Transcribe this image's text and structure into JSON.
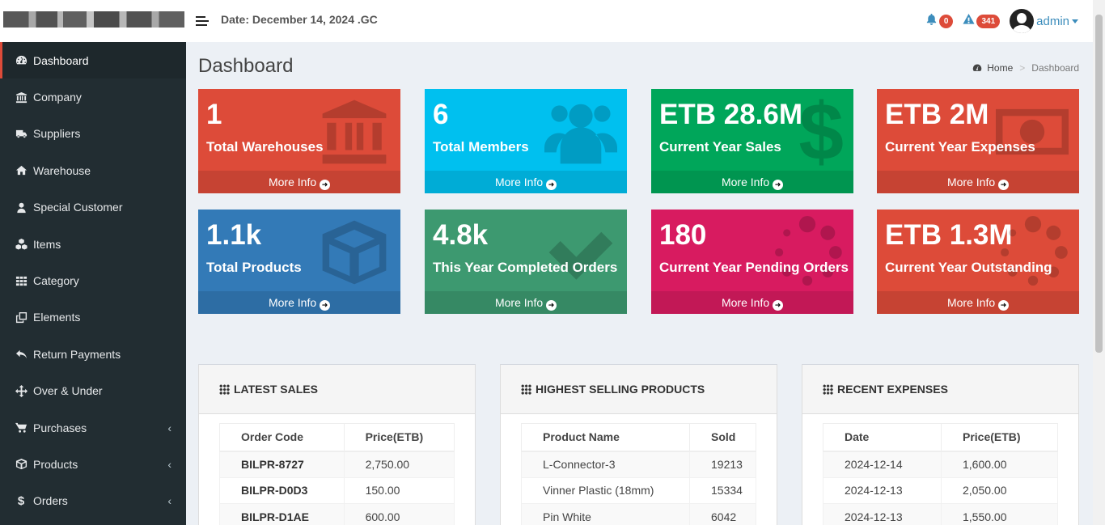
{
  "header": {
    "date": "Date: December 14, 2024 .GC",
    "notifications": [
      {
        "icon": "bell-icon",
        "count": "0"
      },
      {
        "icon": "warning-icon",
        "count": "341"
      }
    ],
    "user": "admin"
  },
  "sidebar": {
    "items": [
      {
        "label": "Dashboard",
        "icon": "dashboard-icon",
        "active": true
      },
      {
        "label": "Company",
        "icon": "bank-icon"
      },
      {
        "label": "Suppliers",
        "icon": "truck-icon"
      },
      {
        "label": "Warehouse",
        "icon": "home-icon"
      },
      {
        "label": "Special Customer",
        "icon": "user-icon"
      },
      {
        "label": "Items",
        "icon": "cubes-icon"
      },
      {
        "label": "Category",
        "icon": "grid-icon"
      },
      {
        "label": "Elements",
        "icon": "clone-icon"
      },
      {
        "label": "Return Payments",
        "icon": "reply-icon"
      },
      {
        "label": "Over & Under",
        "icon": "arrows-icon"
      },
      {
        "label": "Purchases",
        "icon": "cart-icon",
        "expandable": true
      },
      {
        "label": "Products",
        "icon": "cube-icon",
        "expandable": true
      },
      {
        "label": "Orders",
        "icon": "dollar-icon",
        "expandable": true
      }
    ]
  },
  "page": {
    "title": "Dashboard",
    "breadcrumb": {
      "home": "Home",
      "current": "Dashboard"
    }
  },
  "stats": [
    {
      "value": "1",
      "label": "Total Warehouses",
      "more": "More Info",
      "color": "#dd4b39",
      "icon": "bank-icon"
    },
    {
      "value": "6",
      "label": "Total Members",
      "more": "More Info",
      "color": "#00c0ef",
      "icon": "users-icon"
    },
    {
      "value": "ETB 28.6M",
      "label": "Current Year Sales",
      "more": "More Info",
      "color": "#00a65a",
      "icon": "dollar-icon"
    },
    {
      "value": "ETB 2M",
      "label": "Current Year Expenses",
      "more": "More Info",
      "color": "#dd4b39",
      "icon": "money-icon"
    },
    {
      "value": "1.1k",
      "label": "Total Products",
      "more": "More Info",
      "color": "#337ab7",
      "icon": "cube-icon"
    },
    {
      "value": "4.8k",
      "label": "This Year Completed Orders",
      "more": "More Info",
      "color": "#3d9970",
      "icon": "check-icon"
    },
    {
      "value": "180",
      "label": "Current Year Pending Orders",
      "more": "More Info",
      "color": "#d81b60",
      "icon": "spinner-icon"
    },
    {
      "value": "ETB 1.3M",
      "label": "Current Year Outstanding",
      "more": "More Info",
      "color": "#dd4b39",
      "icon": "spinner-icon"
    }
  ],
  "panels": {
    "latest_sales": {
      "title": "LATEST SALES",
      "columns": [
        "Order Code",
        "Price(ETB)"
      ],
      "rows": [
        [
          "BILPR-8727",
          "2,750.00"
        ],
        [
          "BILPR-D0D3",
          "150.00"
        ],
        [
          "BILPR-D1AE",
          "600.00"
        ]
      ]
    },
    "highest_selling": {
      "title": "HIGHEST SELLING PRODUCTS",
      "columns": [
        "Product Name",
        "Sold"
      ],
      "rows": [
        [
          "L-Connector-3",
          "19213"
        ],
        [
          "Vinner Plastic (18mm)",
          "15334"
        ],
        [
          "Pin White",
          "6042"
        ]
      ]
    },
    "recent_expenses": {
      "title": "RECENT EXPENSES",
      "columns": [
        "Date",
        "Price(ETB)"
      ],
      "rows": [
        [
          "2024-12-14",
          "1,600.00"
        ],
        [
          "2024-12-13",
          "2,050.00"
        ],
        [
          "2024-12-13",
          "1,550.00"
        ]
      ]
    }
  }
}
